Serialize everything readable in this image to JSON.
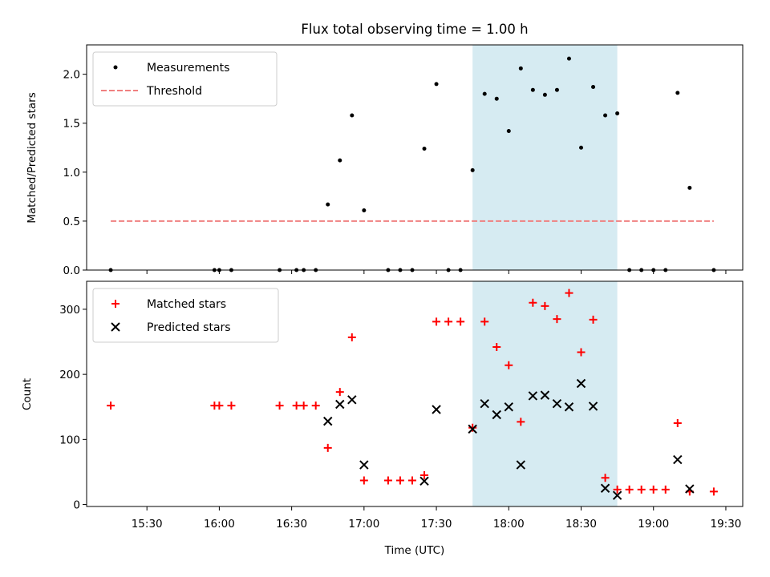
{
  "title": "Flux total observing time = 1.00 h",
  "x_tick_labels": [
    "15:30",
    "16:00",
    "16:30",
    "17:00",
    "17:30",
    "18:00",
    "18:30",
    "19:00",
    "19:30"
  ],
  "xlabel": "Time (UTC)",
  "colors": {
    "measure": "#000000",
    "threshold": "#f08080",
    "matched": "#ff0000",
    "predicted": "#000000",
    "shade": "#add8e6"
  },
  "chart_data": [
    {
      "type": "scatter",
      "panel": "top",
      "ylabel": "Matched/Predicted stars",
      "ylim": [
        0,
        2.3
      ],
      "y_ticks": [
        "0.0",
        "0.5",
        "1.0",
        "1.5",
        "2.0"
      ],
      "xlim": [
        "15:05",
        "19:37"
      ],
      "shaded_span": [
        "17:45",
        "18:45"
      ],
      "legend_placement": "top-left",
      "series": [
        {
          "name": "Measurements",
          "x": [
            "15:15",
            "15:58",
            "16:00",
            "16:05",
            "16:25",
            "16:32",
            "16:35",
            "16:40",
            "16:45",
            "16:50",
            "16:55",
            "17:00",
            "17:10",
            "17:15",
            "17:20",
            "17:25",
            "17:30",
            "17:35",
            "17:40",
            "17:45",
            "17:50",
            "17:55",
            "18:00",
            "18:05",
            "18:10",
            "18:15",
            "18:20",
            "18:25",
            "18:30",
            "18:35",
            "18:40",
            "18:45",
            "18:50",
            "18:55",
            "19:00",
            "19:05",
            "19:10",
            "19:15",
            "19:25"
          ],
          "values": [
            0,
            0,
            0,
            0,
            0,
            0,
            0,
            0,
            0.67,
            1.12,
            1.58,
            0.61,
            0,
            0,
            0,
            1.24,
            1.9,
            0,
            0,
            1.02,
            1.8,
            1.75,
            1.42,
            2.06,
            1.84,
            1.79,
            1.84,
            2.16,
            1.25,
            1.87,
            1.58,
            1.6,
            0,
            0,
            0,
            0,
            1.81,
            0.84,
            0
          ]
        },
        {
          "name": "Threshold",
          "x": [
            "15:15",
            "19:25"
          ],
          "values": [
            0.5,
            0.5
          ]
        }
      ]
    },
    {
      "type": "scatter",
      "panel": "bottom",
      "ylabel": "Count",
      "ylim": [
        -3,
        343
      ],
      "y_ticks": [
        "0",
        "100",
        "200",
        "300"
      ],
      "xlim": [
        "15:05",
        "19:37"
      ],
      "shaded_span": [
        "17:45",
        "18:45"
      ],
      "legend_placement": "top-left",
      "series": [
        {
          "name": "Matched stars",
          "x": [
            "15:15",
            "15:58",
            "16:00",
            "16:05",
            "16:25",
            "16:32",
            "16:35",
            "16:40",
            "16:45",
            "16:50",
            "16:55",
            "17:00",
            "17:10",
            "17:15",
            "17:20",
            "17:25",
            "17:30",
            "17:35",
            "17:40",
            "17:45",
            "17:50",
            "17:55",
            "18:00",
            "18:05",
            "18:10",
            "18:15",
            "18:20",
            "18:25",
            "18:30",
            "18:35",
            "18:40",
            "18:45",
            "18:50",
            "18:55",
            "19:00",
            "19:05",
            "19:10",
            "19:15",
            "19:25"
          ],
          "values": [
            152,
            152,
            152,
            152,
            152,
            152,
            152,
            152,
            87,
            173,
            257,
            37,
            37,
            37,
            37,
            45,
            281,
            281,
            281,
            118,
            281,
            242,
            214,
            127,
            310,
            305,
            285,
            325,
            234,
            284,
            41,
            23,
            23,
            23,
            23,
            23,
            125,
            20,
            20
          ]
        },
        {
          "name": "Predicted stars",
          "x": [
            "16:45",
            "16:50",
            "16:55",
            "17:00",
            "17:25",
            "17:30",
            "17:45",
            "17:50",
            "17:55",
            "18:00",
            "18:05",
            "18:10",
            "18:15",
            "18:20",
            "18:25",
            "18:30",
            "18:35",
            "18:40",
            "18:45",
            "19:10",
            "19:15"
          ],
          "values": [
            128,
            154,
            161,
            61,
            36,
            146,
            116,
            155,
            138,
            150,
            61,
            167,
            168,
            155,
            150,
            186,
            151,
            25,
            14,
            69,
            24
          ]
        }
      ]
    }
  ]
}
